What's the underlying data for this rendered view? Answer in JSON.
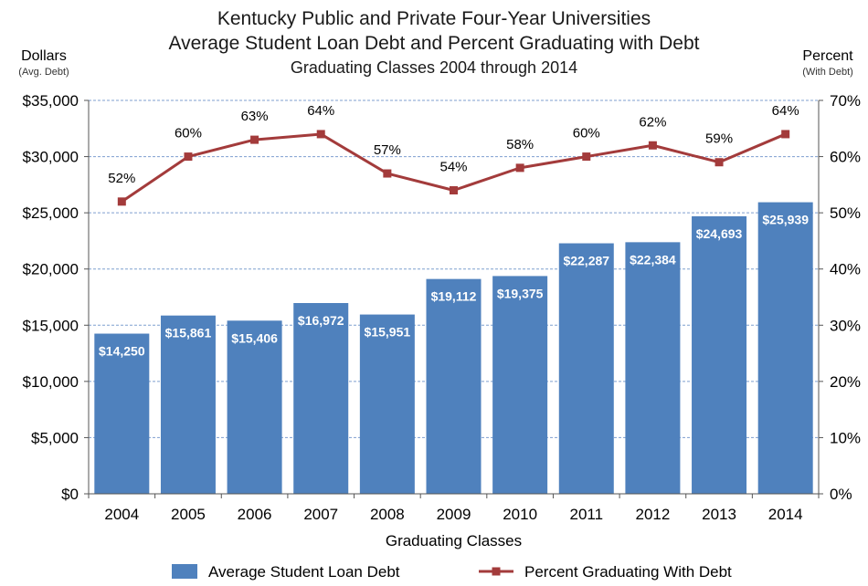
{
  "chart_data": {
    "type": "bar+line",
    "title_lines": [
      "Kentucky Public and Private Four-Year Universities",
      "Average Student Loan Debt and Percent Graduating with Debt",
      "Graduating Classes 2004 through 2014"
    ],
    "left_axis": {
      "label": "Dollars",
      "sublabel": "(Avg. Debt)",
      "ylim": [
        0,
        35000
      ],
      "ticks": [
        "$0",
        "$5,000",
        "$10,000",
        "$15,000",
        "$20,000",
        "$25,000",
        "$30,000",
        "$35,000"
      ]
    },
    "right_axis": {
      "label": "Percent",
      "sublabel": "(With Debt)",
      "ylim": [
        0,
        70
      ],
      "ticks": [
        "0%",
        "10%",
        "20%",
        "30%",
        "40%",
        "50%",
        "60%",
        "70%"
      ]
    },
    "xlabel": "Graduating Classes",
    "categories": [
      "2004",
      "2005",
      "2006",
      "2007",
      "2008",
      "2009",
      "2010",
      "2011",
      "2012",
      "2013",
      "2014"
    ],
    "series": [
      {
        "name": "Average Student Loan Debt",
        "kind": "bar",
        "axis": "left",
        "color": "#4f81bd",
        "values": [
          14250,
          15861,
          15406,
          16972,
          15951,
          19112,
          19375,
          22287,
          22384,
          24693,
          25939
        ],
        "labels": [
          "$14,250",
          "$15,861",
          "$15,406",
          "$16,972",
          "$15,951",
          "$19,112",
          "$19,375",
          "$22,287",
          "$22,384",
          "$24,693",
          "$25,939"
        ]
      },
      {
        "name": "Percent Graduating With Debt",
        "kind": "line",
        "axis": "right",
        "color": "#a33b3b",
        "values": [
          52,
          60,
          63,
          64,
          57,
          54,
          58,
          60,
          62,
          59,
          64
        ],
        "labels": [
          "52%",
          "60%",
          "63%",
          "64%",
          "57%",
          "54%",
          "58%",
          "60%",
          "62%",
          "59%",
          "64%"
        ]
      }
    ],
    "grid": "horizontal dashed",
    "legend_position": "bottom"
  }
}
